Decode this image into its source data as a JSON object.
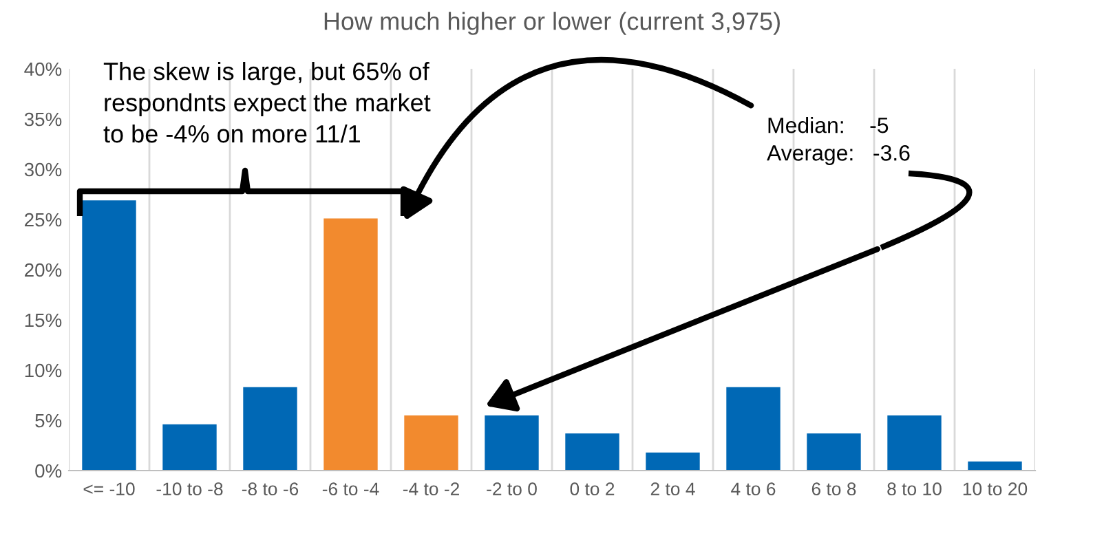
{
  "chart_data": {
    "type": "bar",
    "title": "How much higher or lower (current 3,975)",
    "categories": [
      "<= -10",
      "-10 to -8",
      "-8 to -6",
      "-6 to -4",
      "-4 to -2",
      "-2 to 0",
      "0 to 2",
      "2 to 4",
      "4 to 6",
      "6 to 8",
      "8 to 10",
      "10 to 20"
    ],
    "values": [
      26.9,
      4.6,
      8.3,
      25.1,
      5.5,
      5.5,
      3.7,
      1.8,
      8.3,
      3.7,
      5.5,
      0.9
    ],
    "colors": [
      "#0068b5",
      "#0068b5",
      "#0068b5",
      "#f28a2e",
      "#f28a2e",
      "#0068b5",
      "#0068b5",
      "#0068b5",
      "#0068b5",
      "#0068b5",
      "#0068b5",
      "#0068b5"
    ],
    "ylim": [
      0,
      40
    ],
    "yticks": [
      {
        "value": 0,
        "label": "0%"
      },
      {
        "value": 5,
        "label": "5%"
      },
      {
        "value": 10,
        "label": "10%"
      },
      {
        "value": 15,
        "label": "15%"
      },
      {
        "value": 20,
        "label": "20%"
      },
      {
        "value": 25,
        "label": "25%"
      },
      {
        "value": 30,
        "label": "30%"
      },
      {
        "value": 35,
        "label": "35%"
      },
      {
        "value": 40,
        "label": "40%"
      }
    ],
    "grid": "x",
    "annotations": [
      "The skew is large, but 65% of\nrespondnts expect the market\nto be -4% on more 11/1",
      "Median:    -5\nAverage:   -3.6"
    ]
  }
}
